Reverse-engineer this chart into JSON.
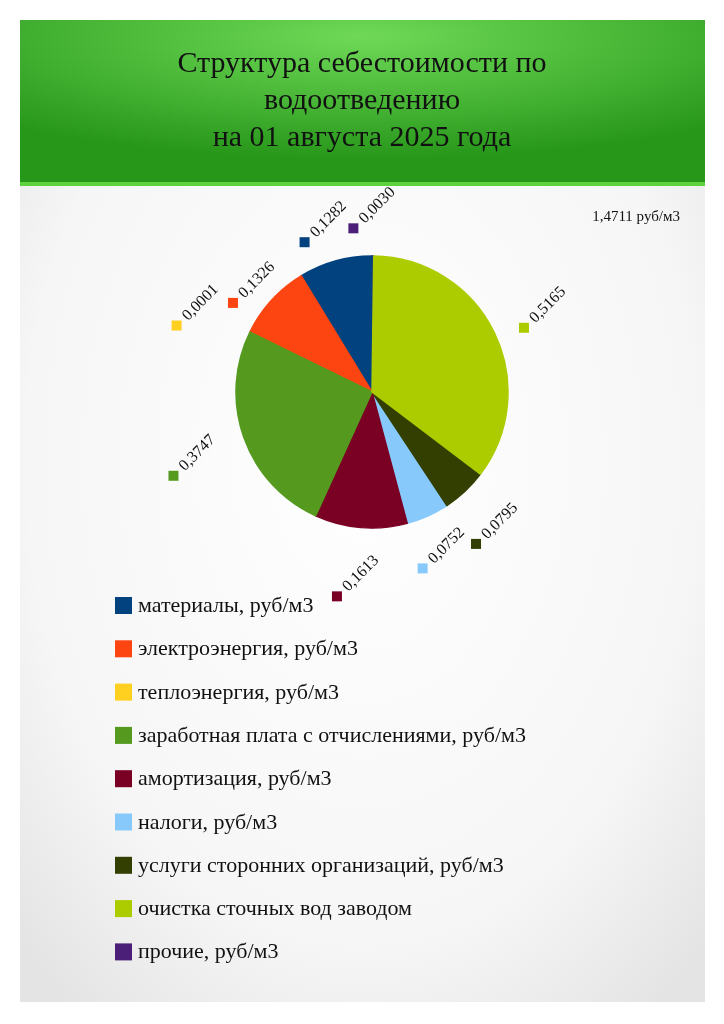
{
  "chart_data": {
    "type": "pie",
    "title": "Структура себестоимости по\nводоотведению\nна 01 августа 2025 года",
    "categories": [
      "материалы, руб/м3",
      "электроэнергия, руб/м3",
      "теплоэнергия, руб/м3",
      "заработная плата с отчислениями, руб/м3",
      "амортизация, руб/м3",
      "налоги, руб/м3",
      "услуги сторонних организаций, руб/м3",
      "очистка сточных вод заводом",
      "прочие, руб/м3"
    ],
    "values": [
      0.1282,
      0.1326,
      0.0001,
      0.3747,
      0.1613,
      0.0752,
      0.0795,
      0.5165,
      0.003
    ],
    "colors": [
      "#02427f",
      "#fc4510",
      "#ffd020",
      "#559a1f",
      "#7a0024",
      "#87c9fa",
      "#333f00",
      "#adcc00",
      "#4b1f78"
    ],
    "value_labels": [
      "0,1282",
      "0,1326",
      "0,0001",
      "0,3747",
      "0,1613",
      "0,0752",
      "0,0795",
      "0,5165",
      "0,0030"
    ],
    "legend": "bottom",
    "annotations": [
      "1,4711 руб/м3"
    ]
  }
}
